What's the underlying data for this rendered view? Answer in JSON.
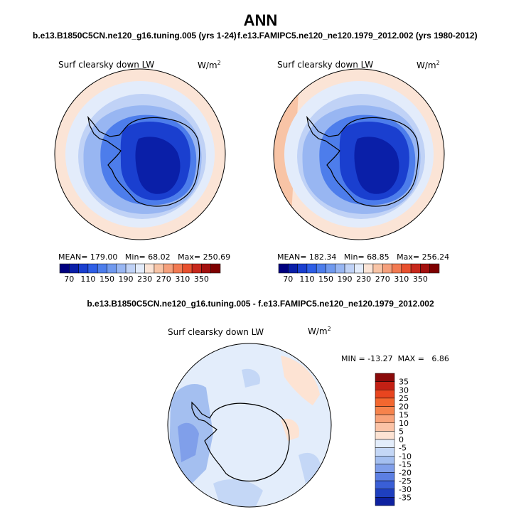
{
  "page": {
    "title": "ANN",
    "case1_title": "b.e13.B1850C5CN.ne120_g16.tuning.005 (yrs 1-24)",
    "case2_title": "f.e13.FAMIPC5.ne120_ne120.1979_2012.002 (yrs 1980-2012)",
    "diff_title": "b.e13.B1850C5CN.ne120_g16.tuning.005 - f.e13.FAMIPC5.ne120_ne120.1979_2012.002"
  },
  "panels": [
    {
      "variable": "Surf clearsky down LW",
      "units_base": "W/m",
      "units_exp": "2",
      "stats": {
        "mean_label": "MEAN=",
        "mean": "179.00",
        "min_label": "Min=",
        "min": "68.02",
        "max_label": "Max=",
        "max": "250.69"
      }
    },
    {
      "variable": "Surf clearsky down LW",
      "units_base": "W/m",
      "units_exp": "2",
      "stats": {
        "mean_label": "MEAN=",
        "mean": "182.34",
        "min_label": "Min=",
        "min": "68.85",
        "max_label": "Max=",
        "max": "256.24"
      }
    },
    {
      "variable": "Surf clearsky down LW",
      "units_base": "W/m",
      "units_exp": "2",
      "stats": {
        "min_label": "MIN =",
        "min": "-13.27",
        "max_label": "MAX =",
        "max": "6.86"
      }
    }
  ],
  "horizontal_colorbar": {
    "tick_labels": [
      "70",
      "110",
      "150",
      "190",
      "230",
      "270",
      "310",
      "350"
    ],
    "colors": [
      "#00007f",
      "#0a1fa8",
      "#1a3fcf",
      "#2e5ee6",
      "#4d7deb",
      "#7099ee",
      "#98b6f2",
      "#c0d2f6",
      "#e3ecfb",
      "#fbe4d6",
      "#f8c4a6",
      "#f5a07c",
      "#f27a52",
      "#e8502e",
      "#c7281c",
      "#a3100e",
      "#7e0000"
    ]
  },
  "vertical_colorbar": {
    "tick_labels": [
      "35",
      "30",
      "25",
      "20",
      "15",
      "10",
      "5",
      "0",
      "-5",
      "-10",
      "-15",
      "-20",
      "-25",
      "-30",
      "-35"
    ],
    "colors": [
      "#8a0a0a",
      "#c32014",
      "#e8451f",
      "#f3672f",
      "#f6834c",
      "#f8a37a",
      "#fbc3a6",
      "#fde3d3",
      "#e3edfb",
      "#c4d7f6",
      "#a4bff0",
      "#809fea",
      "#5c7fe3",
      "#3a5fd6",
      "#1e3fbf",
      "#0e21a0"
    ]
  }
}
